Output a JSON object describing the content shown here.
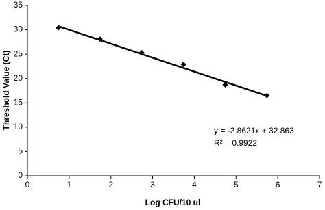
{
  "chart_data": {
    "type": "scatter",
    "x_label": "Log CFU/10 ul",
    "y_label": "Threshold Value (Ct)",
    "annotations": [
      "y = -2.8621x + 32.863",
      "R² = 0.9922"
    ],
    "x": [
      0.74,
      1.74,
      2.74,
      3.74,
      4.74,
      5.74
    ],
    "values": [
      30.4,
      28.1,
      25.3,
      22.9,
      18.7,
      16.5
    ],
    "color": "#000000",
    "trendline": {
      "x": [
        0.72,
        5.75
      ],
      "y": [
        30.8,
        16.4
      ],
      "color": "#000000"
    },
    "xlim": [
      0,
      7
    ],
    "xticks": [
      0,
      1,
      2,
      3,
      4,
      5,
      6,
      7
    ],
    "ylim": [
      0,
      35
    ],
    "yticks": [
      0,
      5,
      10,
      15,
      20,
      25,
      30,
      35
    ],
    "grid": false
  }
}
